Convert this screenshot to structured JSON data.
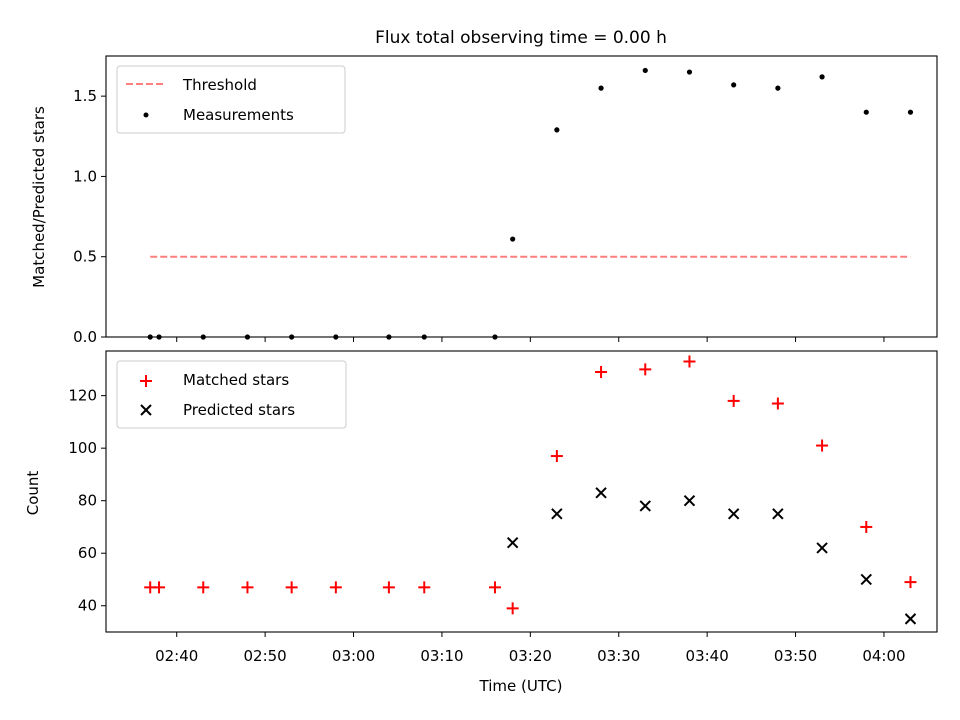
{
  "chart_data": [
    {
      "type": "scatter",
      "title": "Flux total observing time = 0.00 h",
      "xlabel": "",
      "ylabel": "Matched/Predicted stars",
      "ylim": [
        0,
        1.75
      ],
      "yticks": [
        0.0,
        0.5,
        1.0,
        1.5
      ],
      "ytick_labels": [
        "0.0",
        "0.5",
        "1.0",
        "1.5"
      ],
      "legend": "top-left",
      "grid": false,
      "x": [
        "02:37",
        "02:38",
        "02:43",
        "02:48",
        "02:53",
        "02:58",
        "03:04",
        "03:08",
        "03:16",
        "03:18",
        "03:23",
        "03:28",
        "03:33",
        "03:38",
        "03:43",
        "03:48",
        "03:53",
        "03:58",
        "04:03"
      ],
      "series": [
        {
          "name": "Threshold",
          "style": "dashed-line",
          "color": "#ff7f7f",
          "x": [
            "02:37",
            "04:03"
          ],
          "values": [
            0.5,
            0.5
          ]
        },
        {
          "name": "Measurements",
          "style": "dot",
          "color": "#000000",
          "values": [
            0,
            0,
            0,
            0,
            0,
            0,
            0,
            0,
            0,
            0.61,
            1.29,
            1.55,
            1.66,
            1.65,
            1.57,
            1.55,
            1.62,
            1.4,
            1.4
          ]
        }
      ]
    },
    {
      "type": "scatter",
      "title": "",
      "xlabel": "Time (UTC)",
      "ylabel": "Count",
      "ylim": [
        30,
        137
      ],
      "yticks": [
        40,
        60,
        80,
        100,
        120
      ],
      "ytick_labels": [
        "40",
        "60",
        "80",
        "100",
        "120"
      ],
      "xlim": [
        "02:32",
        "04:06"
      ],
      "xticks": [
        "02:40",
        "02:50",
        "03:00",
        "03:10",
        "03:20",
        "03:30",
        "03:40",
        "03:50",
        "04:00"
      ],
      "legend": "top-left",
      "grid": false,
      "x": [
        "02:37",
        "02:38",
        "02:43",
        "02:48",
        "02:53",
        "02:58",
        "03:04",
        "03:08",
        "03:16",
        "03:18",
        "03:23",
        "03:28",
        "03:33",
        "03:38",
        "03:43",
        "03:48",
        "03:53",
        "03:58",
        "04:03"
      ],
      "series": [
        {
          "name": "Matched stars",
          "marker": "plus",
          "color": "#ff0000",
          "x": [
            "02:37",
            "02:38",
            "02:43",
            "02:48",
            "02:53",
            "02:58",
            "03:04",
            "03:08",
            "03:16",
            "03:18",
            "03:23",
            "03:28",
            "03:33",
            "03:38",
            "03:43",
            "03:48",
            "03:53",
            "03:58",
            "04:03"
          ],
          "values": [
            47,
            47,
            47,
            47,
            47,
            47,
            47,
            47,
            47,
            39,
            97,
            129,
            130,
            133,
            118,
            117,
            101,
            70,
            49
          ]
        },
        {
          "name": "Predicted stars",
          "marker": "x",
          "color": "#000000",
          "x": [
            "03:18",
            "03:23",
            "03:28",
            "03:33",
            "03:38",
            "03:43",
            "03:48",
            "03:53",
            "03:58",
            "04:03"
          ],
          "values": [
            64,
            75,
            83,
            78,
            80,
            75,
            75,
            62,
            50,
            35
          ]
        }
      ]
    }
  ]
}
